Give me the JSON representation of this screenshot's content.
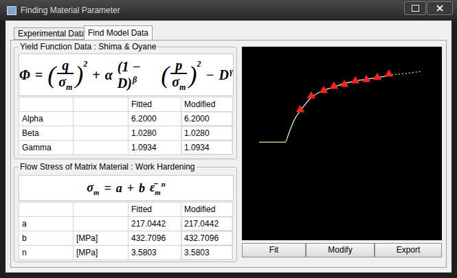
{
  "window": {
    "title": "Finding Material Parameter"
  },
  "tabs": [
    {
      "label": "Experimental Data",
      "selected": false
    },
    {
      "label": "Find Model Data",
      "selected": true
    }
  ],
  "yield_function": {
    "title": "Yield Function Data : Shima & Oyane",
    "formula": [
      {
        "text": "Φ"
      },
      {
        "text": "="
      },
      {
        "open": "(",
        "frac": {
          "num": "q",
          "den": "σ",
          "den_sub": "m"
        },
        "close": ")",
        "sup": "2"
      },
      {
        "text": "+"
      },
      {
        "text": "α"
      },
      {
        "text": "(1 − D)",
        "sup": "β"
      },
      {
        "open": "(",
        "frac": {
          "num": "p",
          "den": "σ",
          "den_sub": "m"
        },
        "close": ")",
        "sup": "2"
      },
      {
        "text": "−"
      },
      {
        "text": "D",
        "sup": "γ"
      }
    ],
    "columns": [
      "Fitted",
      "Modified"
    ],
    "rows": [
      {
        "label": "Alpha",
        "fitted": "6.2000",
        "modified": "6.2000"
      },
      {
        "label": "Beta",
        "fitted": "1.0280",
        "modified": "1.0280"
      },
      {
        "label": "Gamma",
        "fitted": "1.0934",
        "modified": "1.0934"
      }
    ]
  },
  "flow_stress": {
    "title": "Flow Stress of Matrix Material : Work Hardening",
    "formula": [
      {
        "text": "σ",
        "sub": "m"
      },
      {
        "text": "="
      },
      {
        "text": "a"
      },
      {
        "text": "+"
      },
      {
        "text": "b"
      },
      {
        "text": "ε̄",
        "sub": "m",
        "sup": "n"
      }
    ],
    "columns": [
      "Fitted",
      "Modified"
    ],
    "rows": [
      {
        "label": "a",
        "fitted": "217.0442",
        "modified": "217.0442"
      },
      {
        "label": "b",
        "unit": "[MPa]",
        "fitted": "432.7096",
        "modified": "432.7096"
      },
      {
        "label": "n",
        "unit": "[MPa]",
        "fitted": "3.5803",
        "modified": "3.5803"
      }
    ]
  },
  "chart_data": {
    "type": "line",
    "xlim": [
      0,
      100
    ],
    "ylim": [
      0,
      100
    ],
    "tick_labels": false,
    "grid": false,
    "series": [
      {
        "type": "line",
        "color": "#eeeeaa",
        "line_style": "solid",
        "x": [
          0,
          16.2,
          18.3,
          21.7,
          26.0,
          31.9,
          39.6,
          46.0,
          52.3,
          59.6,
          67.2,
          75.7,
          82.1
        ],
        "values": [
          50.4,
          50.4,
          55.7,
          64.3,
          70.9,
          78.3,
          83.0,
          85.2,
          87.4,
          89.1,
          90.4,
          91.7,
          93.0
        ]
      },
      {
        "type": "line",
        "color": "#dddddd",
        "line_style": "dotted",
        "x": [
          82.1,
          90.6,
          100
        ],
        "values": [
          93.0,
          93.9,
          95.2
        ]
      },
      {
        "type": "scatter",
        "color": "#ff2020",
        "marker": "triangle",
        "x": [
          25.5,
          32.3,
          40.0,
          46.4,
          52.8,
          59.6,
          66.4,
          73.2,
          80.4
        ],
        "values": [
          70.9,
          79.6,
          83.0,
          85.7,
          87.0,
          89.1,
          90.0,
          91.3,
          93.5
        ]
      }
    ]
  },
  "buttons": [
    "Fit",
    "Modify",
    "Export"
  ]
}
